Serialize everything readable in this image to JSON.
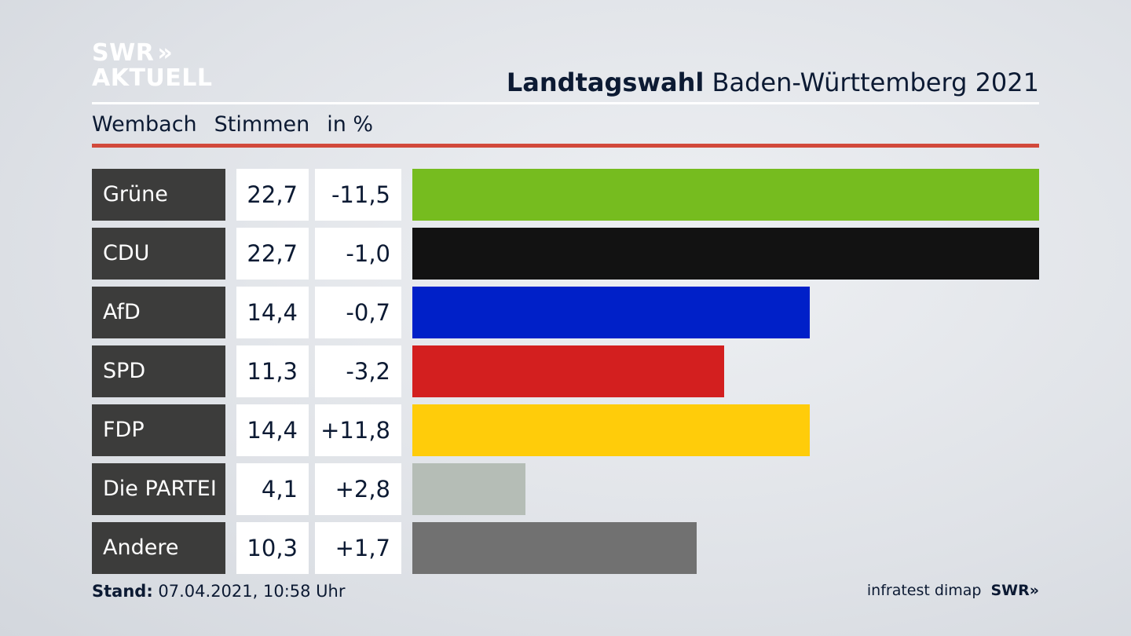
{
  "logo": {
    "line1": "SWR",
    "line2": "AKTUELL"
  },
  "headline": {
    "bold": "Landtagswahl",
    "rest": " Baden-Württemberg 2021"
  },
  "subhead": {
    "place": "Wembach",
    "col1": "Stimmen",
    "col2": "in %"
  },
  "footer": {
    "label": "Stand:",
    "value": " 07.04.2021, 10:58 Uhr"
  },
  "source": {
    "pollster": "infratest dimap",
    "broadcaster": "SWR"
  },
  "chart_data": {
    "type": "bar",
    "orientation": "horizontal",
    "categories": [
      "Grüne",
      "CDU",
      "AfD",
      "SPD",
      "FDP",
      "Die PARTEI",
      "Andere"
    ],
    "values": [
      22.7,
      22.7,
      14.4,
      11.3,
      14.4,
      4.1,
      10.3
    ],
    "value_labels": [
      "22,7",
      "22,7",
      "14,4",
      "11,3",
      "14,4",
      "4,1",
      "10,3"
    ],
    "diff_labels": [
      "-11,5",
      "-1,0",
      "-0,7",
      "-3,2",
      "+11,8",
      "+2,8",
      "+1,7"
    ],
    "colors": [
      "#76bc1f",
      "#121212",
      "#0020c8",
      "#d31f1f",
      "#ffcc0a",
      "#b5bdb6",
      "#717171"
    ],
    "xlim": [
      0,
      22.7
    ],
    "grid": false
  }
}
